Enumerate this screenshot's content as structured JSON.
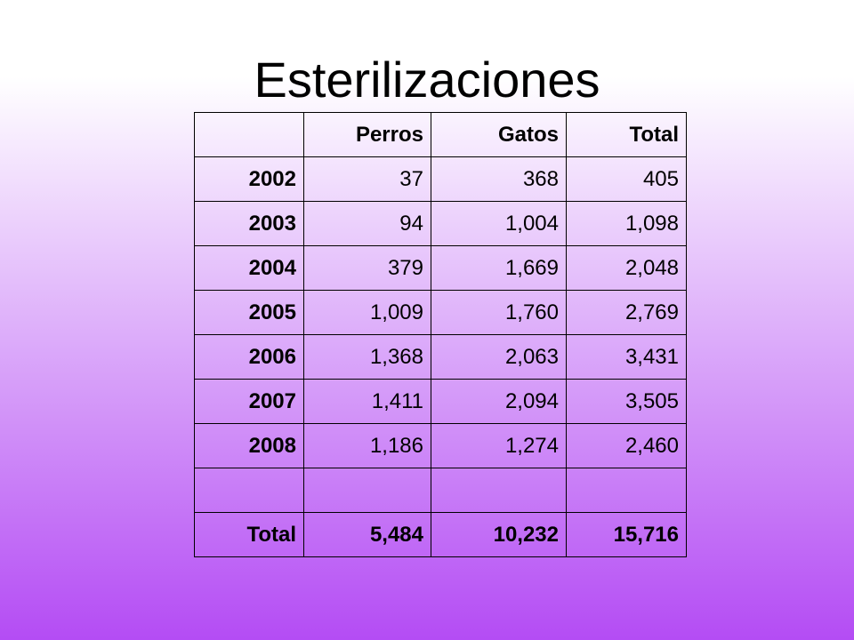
{
  "title": "Esterilizaciones",
  "table": {
    "columns": [
      "Perros",
      "Gatos",
      "Total"
    ],
    "rows": [
      [
        "2002",
        "37",
        "368",
        "405"
      ],
      [
        "2003",
        "94",
        "1,004",
        "1,098"
      ],
      [
        "2004",
        "379",
        "1,669",
        "2,048"
      ],
      [
        "2005",
        "1,009",
        "1,760",
        "2,769"
      ],
      [
        "2006",
        "1,368",
        "2,063",
        "3,431"
      ],
      [
        "2007",
        "1,411",
        "2,094",
        "3,505"
      ],
      [
        "2008",
        "1,186",
        "1,274",
        "2,460"
      ]
    ],
    "total": [
      "Total",
      "5,484",
      "10,232",
      "15,716"
    ]
  }
}
